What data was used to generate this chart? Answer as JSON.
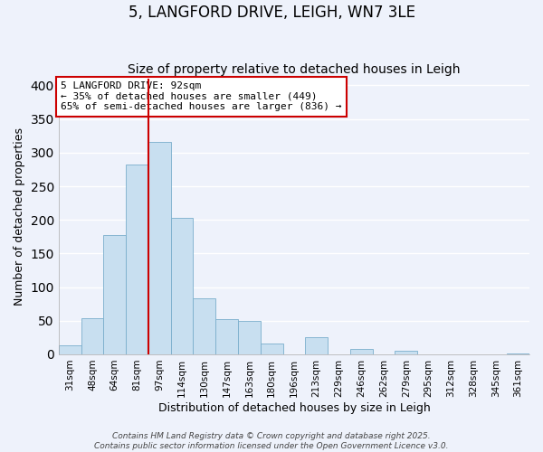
{
  "title": "5, LANGFORD DRIVE, LEIGH, WN7 3LE",
  "subtitle": "Size of property relative to detached houses in Leigh",
  "xlabel": "Distribution of detached houses by size in Leigh",
  "ylabel": "Number of detached properties",
  "bar_labels": [
    "31sqm",
    "48sqm",
    "64sqm",
    "81sqm",
    "97sqm",
    "114sqm",
    "130sqm",
    "147sqm",
    "163sqm",
    "180sqm",
    "196sqm",
    "213sqm",
    "229sqm",
    "246sqm",
    "262sqm",
    "279sqm",
    "295sqm",
    "312sqm",
    "328sqm",
    "345sqm",
    "361sqm"
  ],
  "bar_values": [
    13,
    54,
    178,
    282,
    316,
    203,
    83,
    53,
    50,
    16,
    0,
    25,
    0,
    8,
    0,
    5,
    0,
    0,
    0,
    0,
    1
  ],
  "bar_color": "#c8dff0",
  "bar_edge_color": "#7aaecc",
  "background_color": "#eef2fb",
  "grid_color": "#ffffff",
  "vline_x_index": 3.5,
  "vline_color": "#cc0000",
  "ylim": [
    0,
    410
  ],
  "yticks": [
    0,
    50,
    100,
    150,
    200,
    250,
    300,
    350,
    400
  ],
  "annotation_text": "5 LANGFORD DRIVE: 92sqm\n← 35% of detached houses are smaller (449)\n65% of semi-detached houses are larger (836) →",
  "annotation_box_color": "#ffffff",
  "annotation_box_edge": "#cc0000",
  "footer1": "Contains HM Land Registry data © Crown copyright and database right 2025.",
  "footer2": "Contains public sector information licensed under the Open Government Licence v3.0.",
  "title_fontsize": 12,
  "subtitle_fontsize": 10,
  "axis_label_fontsize": 9,
  "tick_fontsize": 7.5,
  "annotation_fontsize": 8,
  "footer_fontsize": 6.5
}
